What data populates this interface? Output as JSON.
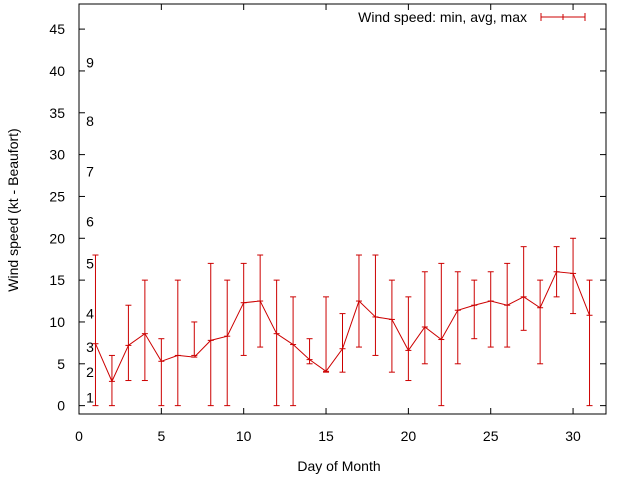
{
  "chart_data": {
    "type": "line",
    "title": "",
    "xlabel": "Day of Month",
    "ylabel": "Wind speed (kt - Beaufort)",
    "xlim": [
      0,
      32
    ],
    "ylim": [
      -1,
      48
    ],
    "xticks": [
      0,
      5,
      10,
      15,
      20,
      25,
      30
    ],
    "yticks": [
      0,
      5,
      10,
      15,
      20,
      25,
      30,
      35,
      40,
      45
    ],
    "beaufort_labels": [
      {
        "label": "1",
        "value": 1
      },
      {
        "label": "2",
        "value": 4
      },
      {
        "label": "3",
        "value": 7
      },
      {
        "label": "4",
        "value": 11
      },
      {
        "label": "5",
        "value": 17
      },
      {
        "label": "6",
        "value": 22
      },
      {
        "label": "7",
        "value": 28
      },
      {
        "label": "8",
        "value": 34
      },
      {
        "label": "9",
        "value": 41
      }
    ],
    "legend": {
      "label": "Wind speed: min, avg, max",
      "position": "top-right"
    },
    "series": [
      {
        "name": "Wind speed: min, avg, max",
        "color": "#cc0000",
        "x": [
          1,
          2,
          3,
          4,
          5,
          6,
          7,
          8,
          9,
          10,
          11,
          12,
          13,
          14,
          15,
          16,
          17,
          18,
          19,
          20,
          21,
          22,
          23,
          24,
          25,
          26,
          27,
          28,
          29,
          30,
          31
        ],
        "avg": [
          7.4,
          2.9,
          7.2,
          8.6,
          5.3,
          6.0,
          5.8,
          7.8,
          8.3,
          12.3,
          12.5,
          8.6,
          7.3,
          5.5,
          4.1,
          6.8,
          12.5,
          10.6,
          10.3,
          6.6,
          9.4,
          7.9,
          11.4,
          12.0,
          12.5,
          12.0,
          13.0,
          11.7,
          16.0,
          15.8,
          10.8
        ],
        "min": [
          0,
          0,
          3,
          3,
          0,
          0,
          6,
          0,
          0,
          6,
          7,
          0,
          0,
          5,
          4,
          4,
          7,
          6,
          4,
          3,
          5,
          0,
          5,
          8,
          7,
          7,
          9,
          5,
          13,
          11,
          0
        ],
        "max": [
          18,
          6,
          12,
          15,
          8,
          15,
          10,
          17,
          15,
          17,
          18,
          15,
          13,
          8,
          13,
          11,
          18,
          18,
          15,
          13,
          16,
          17,
          16,
          15,
          16,
          17,
          19,
          15,
          19,
          20,
          15
        ]
      }
    ]
  }
}
